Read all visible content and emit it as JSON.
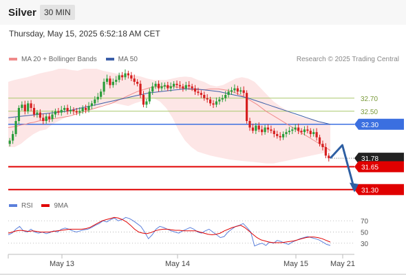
{
  "header": {
    "instrument": "Silver",
    "timeframe": "30 MIN",
    "timestamp": "Thursday, May 15, 2025 6:52:18 AM CET"
  },
  "legend_main": [
    {
      "label": "MA 20 + Bollinger Bands",
      "color": "#f08a8a"
    },
    {
      "label": "MA 50",
      "color": "#3b5ea8"
    }
  ],
  "legend_rsi": [
    {
      "label": "RSI",
      "color": "#5b7fdb"
    },
    {
      "label": "9MA",
      "color": "#e00000"
    }
  ],
  "credit": "Research © 2025 Trading Central",
  "colors": {
    "band_fill": "#fde3e3",
    "candle_up": "#2a9d3a",
    "candle_down": "#d62020",
    "resistance": "#a8c86a",
    "pivot": "#3b6fe0",
    "support": "#e00000",
    "arrow": "#2e5fa3",
    "last_price": "#222222"
  },
  "chart_data": {
    "type": "candlestick",
    "price_range": [
      31.15,
      33.15
    ],
    "x_labels": [
      "May 13",
      "May 14",
      "May 15",
      "May 21"
    ],
    "levels": [
      {
        "value": 32.7,
        "label": "32.70",
        "kind": "resistance"
      },
      {
        "value": 32.5,
        "label": "32.50",
        "kind": "resistance"
      },
      {
        "value": 32.3,
        "label": "32.30",
        "kind": "pivot"
      },
      {
        "value": 31.78,
        "label": "31.78",
        "kind": "last"
      },
      {
        "value": 31.65,
        "label": "31.65",
        "kind": "support"
      },
      {
        "value": 31.3,
        "label": "31.30",
        "kind": "support"
      }
    ],
    "close": [
      32.05,
      32.15,
      32.35,
      32.55,
      32.6,
      32.5,
      32.62,
      32.55,
      32.45,
      32.48,
      32.4,
      32.35,
      32.42,
      32.38,
      32.45,
      32.5,
      32.48,
      32.52,
      32.55,
      32.5,
      32.52,
      32.5,
      32.48,
      32.5,
      32.55,
      32.52,
      32.58,
      32.62,
      32.68,
      32.72,
      32.8,
      32.95,
      33.0,
      32.9,
      32.95,
      32.98,
      33.05,
      33.02,
      33.08,
      33.05,
      33.0,
      32.95,
      32.92,
      32.75,
      32.6,
      32.65,
      32.8,
      32.88,
      32.92,
      32.85,
      32.88,
      32.9,
      32.85,
      32.88,
      32.92,
      32.9,
      32.88,
      32.85,
      32.9,
      32.88,
      32.85,
      32.8,
      32.78,
      32.75,
      32.7,
      32.68,
      32.62,
      32.6,
      32.65,
      32.68,
      32.7,
      32.75,
      32.8,
      32.82,
      32.85,
      32.8,
      32.82,
      32.78,
      32.35,
      32.25,
      32.2,
      32.28,
      32.22,
      32.18,
      32.25,
      32.22,
      32.2,
      32.15,
      32.12,
      32.1,
      32.15,
      32.18,
      32.2,
      32.22,
      32.25,
      32.2,
      32.18,
      32.22,
      32.2,
      32.15,
      32.18,
      32.1,
      32.0,
      31.95,
      31.82,
      31.78
    ],
    "ma20": [
      32.25,
      32.26,
      32.27,
      32.29,
      32.3,
      32.32,
      32.33,
      32.35,
      32.36,
      32.37,
      32.38,
      32.39,
      32.4,
      32.41,
      32.42,
      32.44,
      32.46,
      32.48,
      32.5,
      32.52,
      32.54,
      32.56,
      32.58,
      32.6,
      32.62,
      32.65,
      32.68,
      32.71,
      32.74,
      32.77,
      32.8,
      32.82,
      32.84,
      32.86,
      32.87,
      32.88,
      32.88,
      32.88,
      32.88,
      32.87,
      32.86,
      32.85,
      32.84,
      32.83,
      32.83,
      32.83,
      32.83,
      32.84,
      32.84,
      32.84,
      32.83,
      32.82,
      32.8,
      32.78,
      32.75,
      32.72,
      32.68,
      32.64,
      32.6,
      32.55,
      32.5,
      32.46,
      32.42,
      32.38,
      32.34,
      32.3,
      32.26,
      32.22,
      32.18,
      32.14,
      32.1,
      32.06,
      32.02,
      31.98,
      31.94,
      31.9
    ],
    "ma50": [
      32.4,
      32.41,
      32.42,
      32.43,
      32.44,
      32.45,
      32.46,
      32.47,
      32.48,
      32.49,
      32.5,
      32.52,
      32.54,
      32.56,
      32.58,
      32.6,
      32.62,
      32.64,
      32.66,
      32.68,
      32.7,
      32.72,
      32.74,
      32.76,
      32.78,
      32.79,
      32.8,
      32.81,
      32.82,
      32.83,
      32.84,
      32.84,
      32.84,
      32.83,
      32.82,
      32.81,
      32.8,
      32.78,
      32.76,
      32.74,
      32.72,
      32.7,
      32.67,
      32.64,
      32.61,
      32.58,
      32.55,
      32.52,
      32.49,
      32.46,
      32.43,
      32.4,
      32.37,
      32.34,
      32.32,
      32.3
    ],
    "bollinger": {
      "upper": [
        32.95,
        32.98,
        33.0,
        33.02,
        33.05,
        33.08,
        33.1,
        33.12,
        33.15,
        33.15,
        33.13,
        33.12,
        33.15,
        33.15,
        33.15,
        33.12,
        33.1,
        33.08,
        33.06,
        33.05,
        33.05,
        33.03,
        33.0,
        32.98,
        32.98,
        32.98,
        33.0,
        33.02,
        33.03,
        33.02,
        32.98,
        32.95,
        32.9,
        32.88,
        32.9,
        32.95,
        33.0,
        33.02,
        33.0,
        32.95,
        32.85,
        32.75,
        32.65,
        32.58,
        32.52,
        32.46,
        32.42,
        32.4,
        32.38,
        32.35,
        32.32,
        32.3
      ],
      "lower": [
        31.95,
        31.95,
        32.0,
        32.08,
        32.15,
        32.2,
        32.22,
        32.3,
        32.35,
        32.4,
        32.45,
        32.48,
        32.5,
        32.52,
        32.55,
        32.6,
        32.62,
        32.62,
        32.6,
        32.58,
        32.62,
        32.65,
        32.68,
        32.7,
        32.65,
        32.55,
        32.4,
        32.2,
        32.05,
        31.95,
        31.88,
        31.85,
        31.82,
        31.8,
        31.78,
        31.76,
        31.75,
        31.74,
        31.73,
        31.72,
        31.71,
        31.7,
        31.7,
        31.72,
        31.74,
        31.76,
        31.78,
        31.8,
        31.82,
        31.84,
        31.86,
        31.88
      ]
    },
    "forecast": [
      [
        0,
        31.78
      ],
      [
        1,
        31.98
      ],
      [
        2,
        31.3
      ]
    ],
    "rsi": {
      "levels": [
        70,
        50,
        30
      ],
      "range": [
        15,
        80
      ],
      "values": [
        45,
        48,
        55,
        60,
        52,
        50,
        55,
        50,
        48,
        50,
        47,
        49,
        52,
        50,
        55,
        57,
        55,
        52,
        50,
        52,
        54,
        55,
        58,
        62,
        65,
        70,
        68,
        72,
        75,
        70,
        72,
        76,
        74,
        70,
        65,
        60,
        50,
        38,
        45,
        55,
        60,
        58,
        55,
        52,
        50,
        48,
        52,
        55,
        58,
        55,
        50,
        48,
        52,
        55,
        50,
        45,
        40,
        42,
        50,
        55,
        60,
        62,
        65,
        58,
        50,
        25,
        28,
        30,
        26,
        32,
        30,
        35,
        33,
        30,
        28,
        32,
        35,
        38,
        40,
        42,
        40,
        38,
        36,
        32,
        28,
        26
      ],
      "ma9": [
        48,
        50,
        52,
        53,
        52,
        51,
        52,
        51,
        50,
        50,
        50,
        51,
        52,
        53,
        54,
        55,
        55,
        55,
        55,
        56,
        58,
        62,
        66,
        70,
        72,
        74,
        76,
        75,
        72,
        68,
        62,
        55,
        50,
        48,
        47,
        49,
        52,
        54,
        55,
        55,
        54,
        53,
        53,
        52,
        52,
        52,
        52,
        50,
        48,
        46,
        45,
        46,
        48,
        52,
        55,
        58,
        60,
        62,
        58,
        52,
        46,
        40,
        36,
        34,
        32,
        31,
        31,
        31,
        32,
        33,
        34,
        36,
        38,
        40,
        41,
        41,
        40,
        38,
        35,
        32
      ]
    }
  }
}
